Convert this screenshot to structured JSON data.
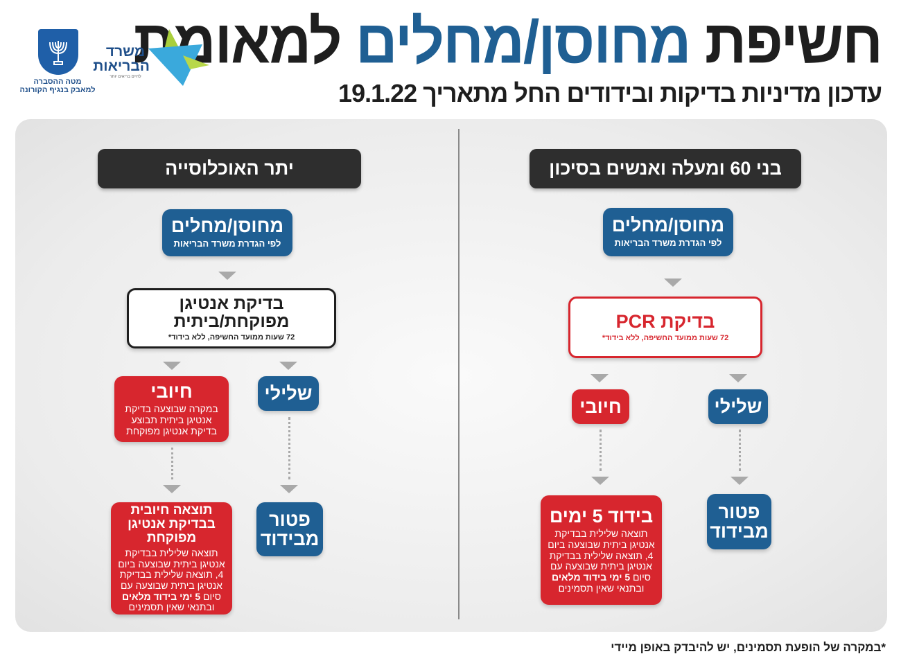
{
  "header": {
    "title_part1": "חשיפת",
    "title_part2": "מחוסן/מחלים",
    "title_part3": "למאומת",
    "subtitle": "עדכון מדיניות בדיקות ובידודים החל מתאריך 19.1.22"
  },
  "logos": {
    "ministry_name_line1": "משרד",
    "ministry_name_line2": "הבריאות",
    "ministry_slogan": "לחיים בריאים יותר",
    "state_caption_line1": "מטה ההסברה",
    "state_caption_line2": "למאבק בנגיף הקורונה"
  },
  "colors": {
    "blue": "#1f5f93",
    "red": "#d7262e",
    "dark": "#2e2e2e"
  },
  "right_column": {
    "header": "בני 60 ומעלה ואנשים בסיכון",
    "start": {
      "title": "מחוסן/מחלים",
      "sub": "לפי הגדרת משרד הבריאות"
    },
    "test": {
      "title": "בדיקת PCR",
      "sub": "72 שעות ממועד החשיפה, ללא בידוד*"
    },
    "negative": "שלילי",
    "positive": "חיובי",
    "exempt": {
      "line1": "פטור",
      "line2": "מבידוד"
    },
    "isolation": {
      "title": "בידוד 5 ימים",
      "body1": "תוצאה שלילית בבדיקת אנטיגן ביתית שבוצעה ביום 4, תוצאה שלילית בבדיקת אנטיגן ביתית שבוצעה עם סיום ",
      "bold1": "5 ימי בידוד מלאים",
      "body2": " ובתנאי שאין תסמינים"
    }
  },
  "left_column": {
    "header": "יתר האוכלוסייה",
    "start": {
      "title": "מחוסן/מחלים",
      "sub": "לפי הגדרת משרד הבריאות"
    },
    "test": {
      "title": "בדיקת אנטיגן מפוקחת/ביתית",
      "sub": "72 שעות ממועד החשיפה, ללא בידוד*"
    },
    "negative": "שלילי",
    "positive": {
      "title": "חיובי",
      "body": "במקרה שבוצעה בדיקת אנטיגן ביתית תבוצע בדיקת אנטיגן מפוקחת"
    },
    "exempt": {
      "line1": "פטור",
      "line2": "מבידוד"
    },
    "confirmed": {
      "title": "תוצאה חיובית בבדיקת אנטיגן מפוקחת",
      "body1": "תוצאה שלילית בבדיקת אנטיגן ביתית שבוצעה ביום 4, תוצאה שלילית בבדיקת אנטיגן ביתית שבוצעה עם סיום ",
      "bold1": "5 ימי בידוד מלאים",
      "body2": " ובתנאי שאין תסמינים"
    }
  },
  "footnote": "*במקרה של הופעת תסמינים, יש להיבדק באופן מיידי"
}
